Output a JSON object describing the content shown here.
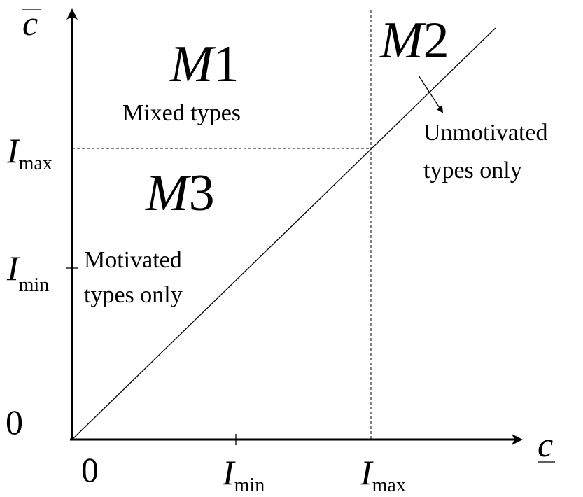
{
  "y_axis": {
    "label": "c",
    "ticks": [
      {
        "main": "I",
        "sub": "max"
      },
      {
        "main": "I",
        "sub": "min"
      },
      {
        "main": "0"
      }
    ]
  },
  "x_axis": {
    "label": "c",
    "ticks": [
      {
        "main": "0"
      },
      {
        "main": "I",
        "sub": "min"
      },
      {
        "main": "I",
        "sub": "max"
      }
    ]
  },
  "regions": [
    {
      "main": "M",
      "num": "1",
      "lines": [
        "Mixed types"
      ]
    },
    {
      "main": "M",
      "num": "2",
      "lines": [
        "Unmotivated",
        "types only"
      ]
    },
    {
      "main": "M",
      "num": "3",
      "lines": [
        "Motivated",
        "types only"
      ]
    }
  ]
}
